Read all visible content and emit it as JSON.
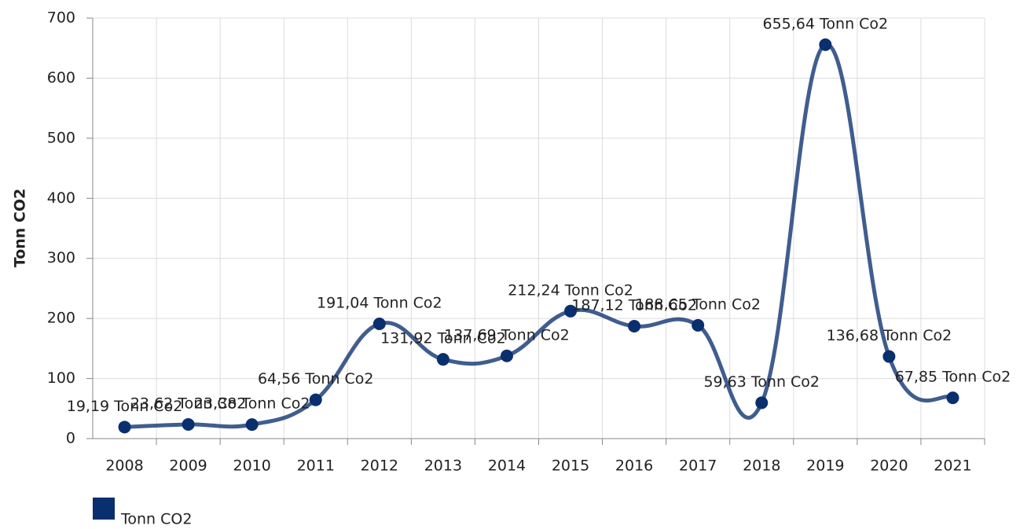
{
  "chart_data": {
    "type": "line",
    "y_label": "Tonn CO2",
    "categories": [
      "2008",
      "2009",
      "2010",
      "2011",
      "2012",
      "2013",
      "2014",
      "2015",
      "2016",
      "2017",
      "2018",
      "2019",
      "2020",
      "2021"
    ],
    "series": [
      {
        "name": "Tonn CO2",
        "color": "#0a2f6e",
        "values": [
          19.19,
          23.62,
          23.38,
          64.56,
          191.04,
          131.92,
          137.69,
          212.24,
          187.12,
          188.65,
          59.63,
          655.64,
          136.68,
          67.85
        ],
        "value_labels": [
          "19,19 Tonn Co2",
          "23,62 Tonn Co2",
          "23,38 Tonn Co2",
          "64,56 Tonn Co2",
          "191,04 Tonn Co2",
          "131,92 Tonn Co2",
          "137,69 Tonn Co2",
          "212,24 Tonn Co2",
          "187,12 Tonn Co2",
          "188,65 Tonn Co2",
          "59,63 Tonn Co2",
          "655,64 Tonn Co2",
          "136,68 Tonn Co2",
          "67,85 Tonn Co2"
        ]
      }
    ],
    "ylim": [
      0,
      700
    ],
    "yticks": [
      0,
      100,
      200,
      300,
      400,
      500,
      600,
      700
    ],
    "grid": true
  }
}
